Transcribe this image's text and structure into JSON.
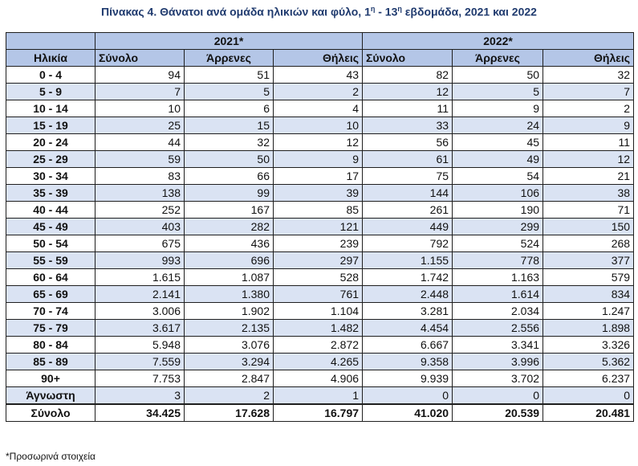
{
  "title": {
    "prefix": "Πίνακας 4. Θάνατοι ανά ομάδα ηλικιών και φύλο, 1",
    "sup1": "η",
    "middle": " - 13",
    "sup2": "η",
    "suffix": " εβδομάδα, 2021 και 2022"
  },
  "header": {
    "year_2021": "2021*",
    "year_2022": "2022*",
    "age": "Ηλικία",
    "cols": [
      "Σύνολο",
      "Άρρενες",
      "Θήλεις",
      "Σύνολο",
      "Άρρενες",
      "Θήλεις"
    ]
  },
  "rows": [
    {
      "age": "0 - 4",
      "v": [
        "94",
        "51",
        "43",
        "82",
        "50",
        "32"
      ]
    },
    {
      "age": "5 - 9",
      "v": [
        "7",
        "5",
        "2",
        "12",
        "5",
        "7"
      ]
    },
    {
      "age": "10 - 14",
      "v": [
        "10",
        "6",
        "4",
        "11",
        "9",
        "2"
      ]
    },
    {
      "age": "15 - 19",
      "v": [
        "25",
        "15",
        "10",
        "33",
        "24",
        "9"
      ]
    },
    {
      "age": "20 - 24",
      "v": [
        "44",
        "32",
        "12",
        "56",
        "45",
        "11"
      ]
    },
    {
      "age": "25 - 29",
      "v": [
        "59",
        "50",
        "9",
        "61",
        "49",
        "12"
      ]
    },
    {
      "age": "30 - 34",
      "v": [
        "83",
        "66",
        "17",
        "75",
        "54",
        "21"
      ]
    },
    {
      "age": "35 - 39",
      "v": [
        "138",
        "99",
        "39",
        "144",
        "106",
        "38"
      ]
    },
    {
      "age": "40 - 44",
      "v": [
        "252",
        "167",
        "85",
        "261",
        "190",
        "71"
      ]
    },
    {
      "age": "45 - 49",
      "v": [
        "403",
        "282",
        "121",
        "449",
        "299",
        "150"
      ]
    },
    {
      "age": "50 - 54",
      "v": [
        "675",
        "436",
        "239",
        "792",
        "524",
        "268"
      ]
    },
    {
      "age": "55 - 59",
      "v": [
        "993",
        "696",
        "297",
        "1.155",
        "778",
        "377"
      ]
    },
    {
      "age": "60 - 64",
      "v": [
        "1.615",
        "1.087",
        "528",
        "1.742",
        "1.163",
        "579"
      ]
    },
    {
      "age": "65 - 69",
      "v": [
        "2.141",
        "1.380",
        "761",
        "2.448",
        "1.614",
        "834"
      ]
    },
    {
      "age": "70 - 74",
      "v": [
        "3.006",
        "1.902",
        "1.104",
        "3.281",
        "2.034",
        "1.247"
      ]
    },
    {
      "age": "75 - 79",
      "v": [
        "3.617",
        "2.135",
        "1.482",
        "4.454",
        "2.556",
        "1.898"
      ]
    },
    {
      "age": "80 - 84",
      "v": [
        "5.948",
        "3.076",
        "2.872",
        "6.667",
        "3.341",
        "3.326"
      ]
    },
    {
      "age": "85 - 89",
      "v": [
        "7.559",
        "3.294",
        "4.265",
        "9.358",
        "3.996",
        "5.362"
      ]
    },
    {
      "age": "90+",
      "v": [
        "7.753",
        "2.847",
        "4.906",
        "9.939",
        "3.702",
        "6.237"
      ]
    },
    {
      "age": "Άγνωστη",
      "v": [
        "3",
        "2",
        "1",
        "0",
        "0",
        "0"
      ]
    }
  ],
  "total": {
    "age": "Σύνολο",
    "v": [
      "34.425",
      "17.628",
      "16.797",
      "41.020",
      "20.539",
      "20.481"
    ]
  },
  "footnote": "*Προσωρινά στοιχεία"
}
